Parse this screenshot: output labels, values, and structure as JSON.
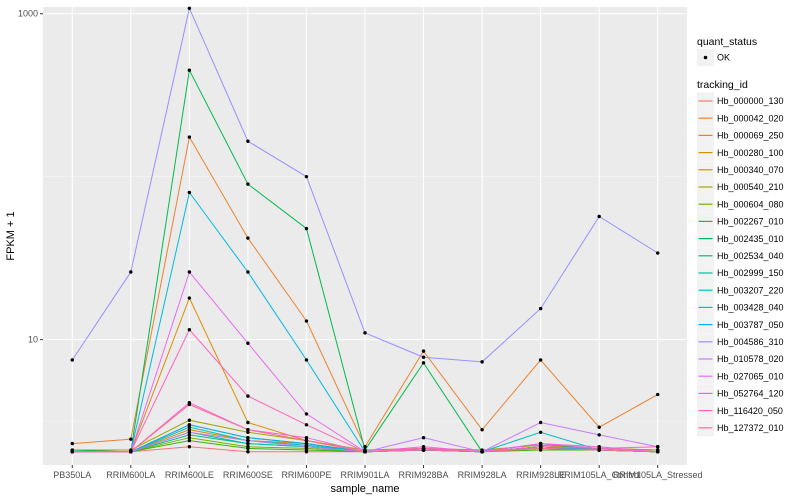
{
  "chart_data": {
    "type": "line",
    "xlabel": "sample_name",
    "ylabel": "FPKM + 1",
    "y_scale": "log10",
    "ylim": [
      1.7,
      1100
    ],
    "y_ticks": [
      10,
      1000
    ],
    "y_tick_labels": [
      "10",
      "1000"
    ],
    "grid": true,
    "legend_position": "right",
    "categories": [
      "PB350LA",
      "RRIM600LA",
      "RRIM600LE",
      "RRIM600SE",
      "RRIM600PE",
      "RRIM901LA",
      "RRIM928BA",
      "RRIM928LA",
      "RRIM928LE",
      "RRIM105LA_Control",
      "RRIM105LA_Stressed"
    ],
    "shape_legend": {
      "title": "quant_status",
      "items": [
        "OK"
      ]
    },
    "color_legend_title": "tracking_id",
    "series": [
      {
        "name": "Hb_000000_130",
        "color": "#F8766D",
        "values": [
          2.05,
          2.05,
          2.2,
          2.05,
          2.05,
          2.05,
          2.1,
          2.05,
          2.15,
          2.1,
          2.05
        ]
      },
      {
        "name": "Hb_000042_020",
        "color": "#EA8331",
        "values": [
          2.3,
          2.45,
          175,
          42,
          13,
          2.2,
          8.5,
          2.8,
          7.5,
          2.9,
          4.6
        ]
      },
      {
        "name": "Hb_000069_250",
        "color": "#DE8C00",
        "values": [
          2.05,
          2.05,
          18,
          3.1,
          2.4,
          2.05,
          2.15,
          2.05,
          2.2,
          2.15,
          2.1
        ]
      },
      {
        "name": "Hb_000280_100",
        "color": "#D89000",
        "values": [
          2.05,
          2.05,
          2.8,
          2.4,
          2.3,
          2.05,
          2.1,
          2.05,
          2.2,
          2.1,
          2.05
        ]
      },
      {
        "name": "Hb_000340_070",
        "color": "#C09B00",
        "values": [
          2.05,
          2.05,
          3.0,
          2.5,
          2.3,
          2.05,
          2.1,
          2.05,
          2.2,
          2.1,
          2.05
        ]
      },
      {
        "name": "Hb_000540_210",
        "color": "#A3A500",
        "values": [
          2.1,
          2.1,
          3.2,
          2.7,
          2.4,
          2.1,
          2.15,
          2.1,
          2.25,
          2.15,
          2.1
        ]
      },
      {
        "name": "Hb_000604_080",
        "color": "#7CAE00",
        "values": [
          2.05,
          2.05,
          2.5,
          2.2,
          2.15,
          2.05,
          2.1,
          2.05,
          2.15,
          2.1,
          2.05
        ]
      },
      {
        "name": "Hb_002267_010",
        "color": "#39B600",
        "values": [
          2.05,
          2.05,
          2.4,
          2.15,
          2.1,
          2.05,
          2.1,
          2.05,
          2.1,
          2.1,
          2.05
        ]
      },
      {
        "name": "Hb_002435_010",
        "color": "#00BB4E",
        "values": [
          2.1,
          2.05,
          450,
          90,
          48,
          2.1,
          7.2,
          2.05,
          2.3,
          2.1,
          2.05
        ]
      },
      {
        "name": "Hb_002534_040",
        "color": "#00BF7D",
        "values": [
          2.05,
          2.05,
          2.6,
          2.3,
          2.2,
          2.05,
          2.1,
          2.05,
          2.2,
          2.1,
          2.05
        ]
      },
      {
        "name": "Hb_002999_150",
        "color": "#00C1A3",
        "values": [
          2.05,
          2.05,
          2.7,
          2.3,
          2.2,
          2.05,
          2.1,
          2.05,
          2.2,
          2.1,
          2.05
        ]
      },
      {
        "name": "Hb_003207_220",
        "color": "#00BFC4",
        "values": [
          2.05,
          2.05,
          2.9,
          2.4,
          2.25,
          2.05,
          2.1,
          2.05,
          2.7,
          2.1,
          2.05
        ]
      },
      {
        "name": "Hb_003428_040",
        "color": "#00BAE0",
        "values": [
          2.05,
          2.05,
          80,
          26,
          7.5,
          2.05,
          2.1,
          2.05,
          2.2,
          2.1,
          2.05
        ]
      },
      {
        "name": "Hb_003787_050",
        "color": "#00B0F6",
        "values": [
          2.05,
          2.05,
          3.0,
          2.5,
          2.3,
          2.05,
          2.1,
          2.05,
          2.2,
          2.1,
          2.05
        ]
      },
      {
        "name": "Hb_004586_310",
        "color": "#9590FF",
        "values": [
          7.5,
          26,
          1080,
          165,
          100,
          11,
          7.8,
          7.3,
          15.5,
          57,
          34
        ]
      },
      {
        "name": "Hb_010578_020",
        "color": "#C77CFF",
        "values": [
          2.05,
          2.05,
          2.7,
          2.4,
          2.2,
          2.05,
          2.5,
          2.05,
          3.1,
          2.6,
          2.2
        ]
      },
      {
        "name": "Hb_027065_010",
        "color": "#E76BF3",
        "values": [
          2.05,
          2.05,
          26,
          9.5,
          3.5,
          2.05,
          2.15,
          2.05,
          2.3,
          2.15,
          2.05
        ]
      },
      {
        "name": "Hb_052764_120",
        "color": "#FA62DB",
        "values": [
          2.05,
          2.05,
          4.1,
          2.8,
          2.5,
          2.05,
          2.2,
          2.05,
          2.3,
          2.2,
          2.05
        ]
      },
      {
        "name": "Hb_116420_050",
        "color": "#FF62BC",
        "values": [
          2.05,
          2.05,
          11.5,
          4.5,
          3.0,
          2.05,
          2.15,
          2.05,
          2.2,
          2.15,
          2.2
        ]
      },
      {
        "name": "Hb_127372_010",
        "color": "#FF6C91",
        "values": [
          2.05,
          2.05,
          4.0,
          2.8,
          2.4,
          2.05,
          2.1,
          2.05,
          2.15,
          2.1,
          2.05
        ]
      }
    ]
  }
}
